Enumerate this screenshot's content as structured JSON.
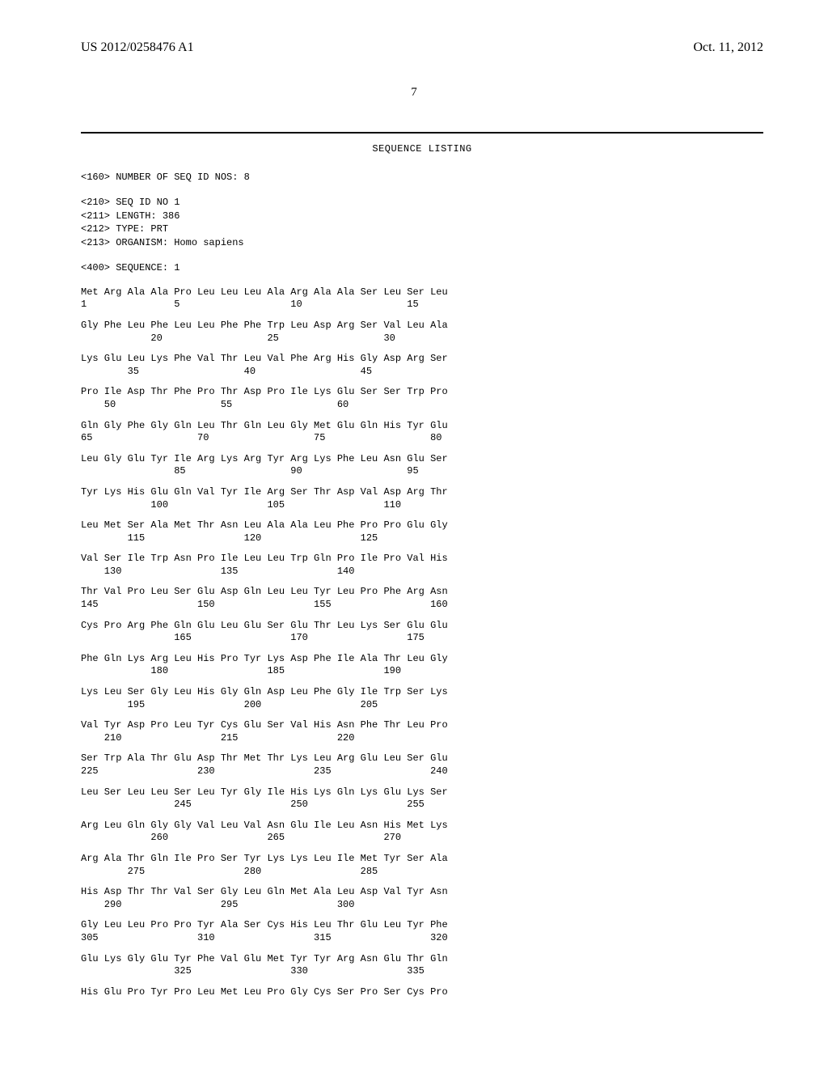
{
  "header": {
    "patent_number": "US 2012/0258476 A1",
    "date": "Oct. 11, 2012"
  },
  "page_number": "7",
  "listing_title": "SEQUENCE LISTING",
  "meta": {
    "num_seq": "<160> NUMBER OF SEQ ID NOS: 8",
    "seq_id": "<210> SEQ ID NO 1",
    "length": "<211> LENGTH: 386",
    "type": "<212> TYPE: PRT",
    "organism": "<213> ORGANISM: Homo sapiens",
    "sequence_header": "<400> SEQUENCE: 1"
  },
  "rows": [
    {
      "aa": "Met Arg Ala Ala Pro Leu Leu Leu Ala Arg Ala Ala Ser Leu Ser Leu",
      "pos": "1               5                   10                  15"
    },
    {
      "aa": "Gly Phe Leu Phe Leu Leu Phe Phe Trp Leu Asp Arg Ser Val Leu Ala",
      "pos": "            20                  25                  30"
    },
    {
      "aa": "Lys Glu Leu Lys Phe Val Thr Leu Val Phe Arg His Gly Asp Arg Ser",
      "pos": "        35                  40                  45"
    },
    {
      "aa": "Pro Ile Asp Thr Phe Pro Thr Asp Pro Ile Lys Glu Ser Ser Trp Pro",
      "pos": "    50                  55                  60"
    },
    {
      "aa": "Gln Gly Phe Gly Gln Leu Thr Gln Leu Gly Met Glu Gln His Tyr Glu",
      "pos": "65                  70                  75                  80"
    },
    {
      "aa": "Leu Gly Glu Tyr Ile Arg Lys Arg Tyr Arg Lys Phe Leu Asn Glu Ser",
      "pos": "                85                  90                  95"
    },
    {
      "aa": "Tyr Lys His Glu Gln Val Tyr Ile Arg Ser Thr Asp Val Asp Arg Thr",
      "pos": "            100                 105                 110"
    },
    {
      "aa": "Leu Met Ser Ala Met Thr Asn Leu Ala Ala Leu Phe Pro Pro Glu Gly",
      "pos": "        115                 120                 125"
    },
    {
      "aa": "Val Ser Ile Trp Asn Pro Ile Leu Leu Trp Gln Pro Ile Pro Val His",
      "pos": "    130                 135                 140"
    },
    {
      "aa": "Thr Val Pro Leu Ser Glu Asp Gln Leu Leu Tyr Leu Pro Phe Arg Asn",
      "pos": "145                 150                 155                 160"
    },
    {
      "aa": "Cys Pro Arg Phe Gln Glu Leu Glu Ser Glu Thr Leu Lys Ser Glu Glu",
      "pos": "                165                 170                 175"
    },
    {
      "aa": "Phe Gln Lys Arg Leu His Pro Tyr Lys Asp Phe Ile Ala Thr Leu Gly",
      "pos": "            180                 185                 190"
    },
    {
      "aa": "Lys Leu Ser Gly Leu His Gly Gln Asp Leu Phe Gly Ile Trp Ser Lys",
      "pos": "        195                 200                 205"
    },
    {
      "aa": "Val Tyr Asp Pro Leu Tyr Cys Glu Ser Val His Asn Phe Thr Leu Pro",
      "pos": "    210                 215                 220"
    },
    {
      "aa": "Ser Trp Ala Thr Glu Asp Thr Met Thr Lys Leu Arg Glu Leu Ser Glu",
      "pos": "225                 230                 235                 240"
    },
    {
      "aa": "Leu Ser Leu Leu Ser Leu Tyr Gly Ile His Lys Gln Lys Glu Lys Ser",
      "pos": "                245                 250                 255"
    },
    {
      "aa": "Arg Leu Gln Gly Gly Val Leu Val Asn Glu Ile Leu Asn His Met Lys",
      "pos": "            260                 265                 270"
    },
    {
      "aa": "Arg Ala Thr Gln Ile Pro Ser Tyr Lys Lys Leu Ile Met Tyr Ser Ala",
      "pos": "        275                 280                 285"
    },
    {
      "aa": "His Asp Thr Thr Val Ser Gly Leu Gln Met Ala Leu Asp Val Tyr Asn",
      "pos": "    290                 295                 300"
    },
    {
      "aa": "Gly Leu Leu Pro Pro Tyr Ala Ser Cys His Leu Thr Glu Leu Tyr Phe",
      "pos": "305                 310                 315                 320"
    },
    {
      "aa": "Glu Lys Gly Glu Tyr Phe Val Glu Met Tyr Tyr Arg Asn Glu Thr Gln",
      "pos": "                325                 330                 335"
    },
    {
      "aa": "His Glu Pro Tyr Pro Leu Met Leu Pro Gly Cys Ser Pro Ser Cys Pro",
      "pos": ""
    }
  ]
}
